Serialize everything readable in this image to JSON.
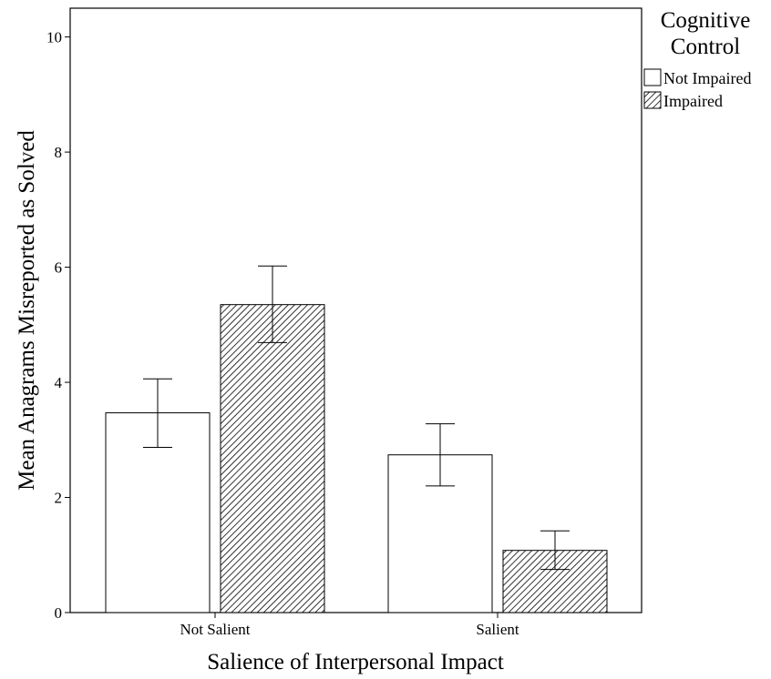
{
  "chart_data": {
    "type": "bar",
    "categories": [
      "Not Salient",
      "Salient"
    ],
    "series": [
      {
        "name": "Not Impaired",
        "values": [
          3.47,
          2.74
        ],
        "error_low": [
          2.87,
          2.2
        ],
        "error_high": [
          4.06,
          3.28
        ],
        "pattern": "none"
      },
      {
        "name": "Impaired",
        "values": [
          5.35,
          1.08
        ],
        "error_low": [
          4.69,
          0.75
        ],
        "error_high": [
          6.02,
          1.42
        ],
        "pattern": "hatched"
      }
    ],
    "xlabel": "Salience of Interpersonal Impact",
    "ylabel": "Mean Anagrams Misreported as Solved",
    "ylim": [
      0,
      10.5
    ],
    "yticks": [
      "0",
      "2",
      "4",
      "6",
      "8",
      "10"
    ],
    "legend": {
      "title_line1": "Cognitive",
      "title_line2": "Control",
      "placement": "right"
    },
    "grid": false
  }
}
